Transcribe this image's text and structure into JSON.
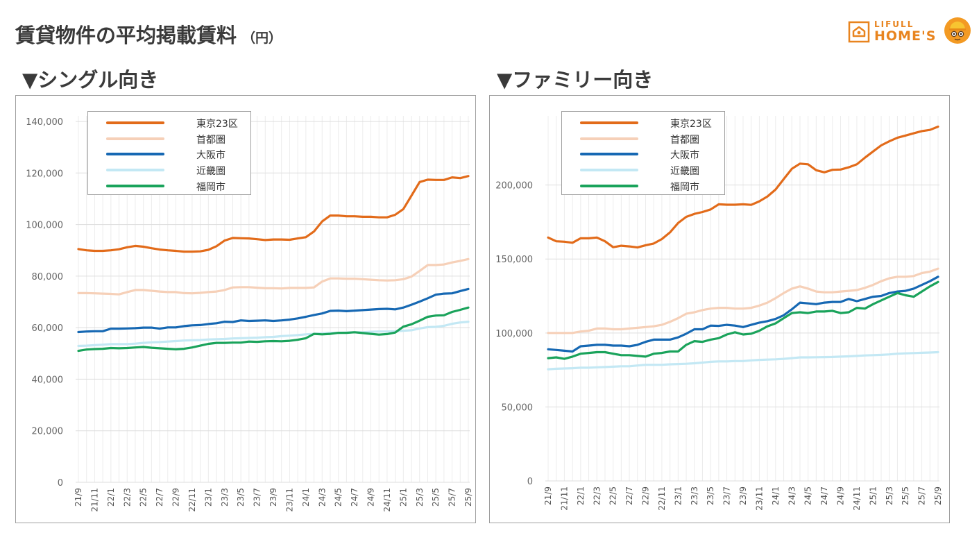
{
  "page": {
    "title": "賃貸物件の平均掲載賃料",
    "unit": "（円）"
  },
  "brand": {
    "line1": "LIFULL",
    "line2": "HOME'S",
    "color": "#e8841f"
  },
  "sections": {
    "single": "▼シングル向き",
    "family": "▼ファミリー向き"
  },
  "chart_data": [
    {
      "id": "single",
      "type": "line",
      "title": "▼シングル向き",
      "xlabel": "",
      "ylabel": "",
      "ylim": [
        0,
        140000
      ],
      "yticks": [
        0,
        20000,
        40000,
        60000,
        80000,
        100000,
        120000,
        140000
      ],
      "ytick_labels": [
        "0",
        "20,000",
        "40,000",
        "60,000",
        "80,000",
        "100,000",
        "120,000",
        "140,000"
      ],
      "categories": [
        "21/9",
        "21/10",
        "21/11",
        "21/12",
        "22/1",
        "22/2",
        "22/3",
        "22/4",
        "22/5",
        "22/6",
        "22/7",
        "22/8",
        "22/9",
        "22/10",
        "22/11",
        "22/12",
        "23/1",
        "23/2",
        "23/3",
        "23/4",
        "23/5",
        "23/6",
        "23/7",
        "23/8",
        "23/9",
        "23/10",
        "23/11",
        "23/12",
        "24/1",
        "24/2",
        "24/3",
        "24/4",
        "24/5",
        "24/6",
        "24/7",
        "24/8",
        "24/9",
        "24/10",
        "24/11",
        "24/12",
        "25/1",
        "25/2",
        "25/3",
        "25/4",
        "25/5",
        "25/6",
        "25/7",
        "25/8",
        "25/9"
      ],
      "xtick_labels": [
        "21/9",
        "21/11",
        "22/1",
        "22/3",
        "22/5",
        "22/7",
        "22/9",
        "22/11",
        "23/1",
        "23/3",
        "23/5",
        "23/7",
        "23/9",
        "23/11",
        "24/1",
        "24/3",
        "24/5",
        "24/7",
        "24/9",
        "24/11",
        "25/1",
        "25/3",
        "25/5",
        "25/7",
        "25/9"
      ],
      "grid": true,
      "legend_position": "top-left",
      "series": [
        {
          "name": "東京23区",
          "color": "#e26b1a",
          "values": [
            90500,
            90000,
            89800,
            89800,
            90000,
            90400,
            91200,
            91700,
            91400,
            90800,
            90300,
            90000,
            89800,
            89500,
            89500,
            89600,
            90200,
            91600,
            93800,
            94800,
            94700,
            94600,
            94300,
            94000,
            94200,
            94200,
            94100,
            94600,
            95100,
            97300,
            101200,
            103500,
            103500,
            103200,
            103200,
            103000,
            103000,
            102800,
            102800,
            103800,
            106000,
            111200,
            116500,
            117400,
            117300,
            117300,
            118300,
            118000,
            118800
          ]
        },
        {
          "name": "首都圏",
          "color": "#f6d0b8",
          "values": [
            73400,
            73400,
            73300,
            73200,
            73100,
            72900,
            73800,
            74600,
            74600,
            74300,
            74000,
            73800,
            73800,
            73400,
            73300,
            73500,
            73800,
            74000,
            74600,
            75600,
            75700,
            75700,
            75500,
            75300,
            75300,
            75200,
            75400,
            75400,
            75400,
            75600,
            77900,
            79100,
            79100,
            79000,
            79000,
            78800,
            78600,
            78400,
            78300,
            78400,
            78800,
            79800,
            82000,
            84300,
            84300,
            84500,
            85300,
            85900,
            86600
          ]
        },
        {
          "name": "大阪市",
          "color": "#1668b3",
          "values": [
            58300,
            58500,
            58600,
            58600,
            59600,
            59600,
            59700,
            59800,
            60000,
            60000,
            59600,
            60100,
            60100,
            60600,
            60900,
            61000,
            61400,
            61700,
            62300,
            62200,
            62800,
            62600,
            62700,
            62800,
            62600,
            62800,
            63100,
            63600,
            64200,
            64900,
            65500,
            66500,
            66600,
            66400,
            66600,
            66800,
            67000,
            67200,
            67300,
            67100,
            67800,
            68900,
            70100,
            71400,
            72800,
            73200,
            73300,
            74200,
            75000
          ]
        },
        {
          "name": "近畿圏",
          "color": "#c3e8f4",
          "values": [
            52900,
            53000,
            53200,
            53400,
            53600,
            53600,
            53600,
            53800,
            54100,
            54300,
            54400,
            54600,
            54800,
            55000,
            55100,
            55200,
            55400,
            55500,
            55600,
            55800,
            55900,
            56000,
            56100,
            56300,
            56400,
            56700,
            56900,
            57100,
            57400,
            57600,
            57800,
            58000,
            58000,
            58100,
            58200,
            58200,
            58400,
            58500,
            58500,
            58600,
            58800,
            59000,
            59700,
            60200,
            60300,
            60700,
            61500,
            62000,
            62300
          ]
        },
        {
          "name": "福岡市",
          "color": "#1aa35b",
          "values": [
            51000,
            51500,
            51700,
            51800,
            52100,
            52000,
            52100,
            52300,
            52500,
            52200,
            52000,
            51800,
            51600,
            51800,
            52300,
            53000,
            53700,
            54100,
            54100,
            54200,
            54200,
            54600,
            54500,
            54700,
            54800,
            54700,
            54900,
            55300,
            55900,
            57600,
            57400,
            57600,
            58000,
            58000,
            58200,
            57900,
            57600,
            57300,
            57500,
            58100,
            60400,
            61300,
            62700,
            64200,
            64700,
            64800,
            66100,
            66900,
            67800
          ]
        }
      ]
    },
    {
      "id": "family",
      "type": "line",
      "title": "▼ファミリー向き",
      "xlabel": "",
      "ylabel": "",
      "ylim": [
        0,
        243000
      ],
      "yticks": [
        0,
        50000,
        100000,
        150000,
        200000
      ],
      "ytick_labels": [
        "0",
        "50,000",
        "100,000",
        "150,000",
        "200,000"
      ],
      "categories": [
        "21/9",
        "21/10",
        "21/11",
        "21/12",
        "22/1",
        "22/2",
        "22/3",
        "22/4",
        "22/5",
        "22/6",
        "22/7",
        "22/8",
        "22/9",
        "22/10",
        "22/11",
        "22/12",
        "23/1",
        "23/2",
        "23/3",
        "23/4",
        "23/5",
        "23/6",
        "23/7",
        "23/8",
        "23/9",
        "23/10",
        "23/11",
        "23/12",
        "24/1",
        "24/2",
        "24/3",
        "24/4",
        "24/5",
        "24/6",
        "24/7",
        "24/8",
        "24/9",
        "24/10",
        "24/11",
        "24/12",
        "25/1",
        "25/2",
        "25/3",
        "25/4",
        "25/5",
        "25/6",
        "25/7",
        "25/8",
        "25/9"
      ],
      "xtick_labels": [
        "21/9",
        "21/11",
        "22/1",
        "22/3",
        "22/5",
        "22/7",
        "22/9",
        "22/11",
        "23/1",
        "23/3",
        "23/5",
        "23/7",
        "23/9",
        "23/11",
        "24/1",
        "24/3",
        "24/5",
        "24/7",
        "24/9",
        "24/11",
        "25/1",
        "25/3",
        "25/5",
        "25/7",
        "25/9"
      ],
      "grid": true,
      "legend_position": "top-left",
      "series": [
        {
          "name": "東京23区",
          "color": "#e26b1a",
          "values": [
            164500,
            162000,
            161700,
            161000,
            164000,
            164000,
            164500,
            162000,
            158000,
            159000,
            158500,
            157800,
            159300,
            160500,
            163500,
            168000,
            174300,
            178500,
            180500,
            181800,
            183500,
            187000,
            186700,
            186700,
            187000,
            186600,
            189000,
            192300,
            197000,
            204000,
            211000,
            214500,
            214000,
            210000,
            208600,
            210300,
            210500,
            212000,
            214000,
            218500,
            222700,
            226800,
            229600,
            232000,
            233500,
            235000,
            236500,
            237300,
            239500
          ]
        },
        {
          "name": "首都圏",
          "color": "#f6d0b8",
          "values": [
            100000,
            100000,
            100000,
            100000,
            101000,
            101500,
            103000,
            103000,
            102500,
            102500,
            103000,
            103500,
            104000,
            104500,
            105500,
            107500,
            110000,
            113000,
            114000,
            115500,
            116500,
            117000,
            117000,
            116500,
            116500,
            117000,
            118500,
            120500,
            123500,
            127000,
            130000,
            131500,
            130000,
            128000,
            127500,
            127500,
            128000,
            128500,
            129000,
            130500,
            132500,
            135000,
            137000,
            138000,
            138000,
            138500,
            140500,
            141500,
            143500
          ]
        },
        {
          "name": "大阪市",
          "color": "#1668b3",
          "values": [
            89000,
            88500,
            88000,
            87500,
            91000,
            91500,
            92000,
            92000,
            91500,
            91500,
            91000,
            92000,
            94000,
            95500,
            95500,
            95500,
            97000,
            99500,
            102500,
            102500,
            105000,
            104800,
            105500,
            105000,
            104000,
            105500,
            107000,
            108000,
            109500,
            112000,
            116000,
            120500,
            120000,
            119500,
            120500,
            121000,
            121000,
            123000,
            121500,
            123000,
            124500,
            125000,
            127000,
            128000,
            128500,
            130000,
            132500,
            135000,
            138000
          ]
        },
        {
          "name": "近畿圏",
          "color": "#c3e8f4",
          "values": [
            75500,
            75800,
            76000,
            76200,
            76500,
            76500,
            76800,
            77000,
            77200,
            77500,
            77500,
            78000,
            78500,
            78500,
            78500,
            78800,
            79000,
            79200,
            79500,
            80000,
            80500,
            80800,
            80800,
            81000,
            81000,
            81500,
            81800,
            82000,
            82200,
            82500,
            83000,
            83500,
            83500,
            83600,
            83700,
            83800,
            84000,
            84200,
            84500,
            84800,
            85000,
            85200,
            85500,
            86000,
            86200,
            86400,
            86600,
            86800,
            87000
          ]
        },
        {
          "name": "福岡市",
          "color": "#1aa35b",
          "values": [
            83000,
            83500,
            82500,
            84000,
            86000,
            86500,
            87000,
            87000,
            86000,
            85000,
            85000,
            84500,
            84000,
            86000,
            86500,
            87500,
            87500,
            92000,
            94500,
            94000,
            95500,
            96500,
            99000,
            100500,
            99000,
            99500,
            101500,
            104500,
            106500,
            110000,
            113500,
            114000,
            113500,
            114500,
            114500,
            115000,
            113500,
            114000,
            117000,
            116500,
            119500,
            122000,
            124500,
            127000,
            125500,
            124500,
            128000,
            131500,
            134500
          ]
        }
      ]
    }
  ]
}
